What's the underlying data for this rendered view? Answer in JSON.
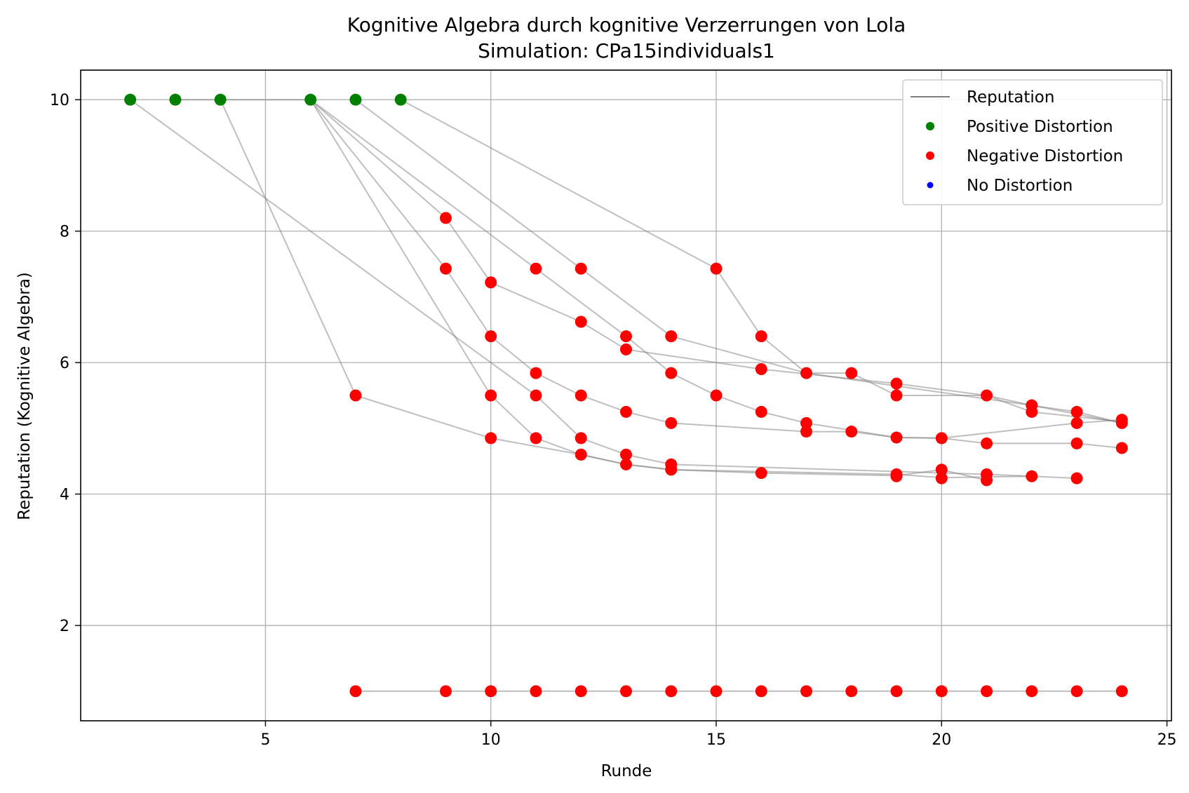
{
  "chart_data": {
    "type": "scatter",
    "title": "Kognitive Algebra durch kognitive Verzerrungen von Lola",
    "subtitle": "Simulation: CPa15individuals1",
    "xlabel": "Runde",
    "ylabel": "Reputation (Kognitive Algebra)",
    "xlim": [
      0.9,
      25.1
    ],
    "ylim": [
      0.55,
      10.45
    ],
    "xticks": [
      5,
      10,
      15,
      20,
      25
    ],
    "yticks": [
      2,
      4,
      6,
      8,
      10
    ],
    "grid": true,
    "legend_position": "top-right",
    "legend": [
      {
        "label": "Reputation",
        "kind": "line",
        "color": "#808080"
      },
      {
        "label": "Positive Distortion",
        "kind": "marker",
        "color": "#008000"
      },
      {
        "label": "Negative Distortion",
        "kind": "marker",
        "color": "#ff0000"
      },
      {
        "label": "No Distortion",
        "kind": "marker",
        "color": "#0000ff"
      }
    ],
    "colors": {
      "line": "#808080",
      "positive": "#008000",
      "negative": "#ff0000",
      "none": "#0000ff",
      "grid": "#b0b0b0"
    },
    "series": [
      {
        "points": [
          [
            2,
            10
          ],
          [
            10,
            6.0
          ],
          [
            11,
            5.5
          ],
          [
            12,
            4.85
          ],
          [
            13,
            4.6
          ],
          [
            14,
            4.45
          ],
          [
            21,
            4.3
          ],
          [
            22,
            4.27
          ]
        ]
      },
      {
        "points": [
          [
            3,
            10
          ],
          [
            6,
            10
          ]
        ]
      },
      {
        "points": [
          [
            4,
            10
          ],
          [
            7,
            5.5
          ],
          [
            10,
            4.85
          ],
          [
            12,
            4.6
          ],
          [
            13,
            4.45
          ],
          [
            14,
            4.37
          ],
          [
            19,
            4.3
          ],
          [
            20,
            4.25
          ],
          [
            22,
            4.27
          ],
          [
            23,
            4.24
          ]
        ]
      },
      {
        "points": [
          [
            6,
            10
          ],
          [
            9,
            8.2
          ],
          [
            10,
            7.22
          ],
          [
            12,
            6.62
          ],
          [
            13,
            6.2
          ],
          [
            16,
            5.9
          ],
          [
            19,
            5.68
          ],
          [
            21,
            5.5
          ],
          [
            22,
            5.35
          ],
          [
            24,
            5.08
          ]
        ]
      },
      {
        "points": [
          [
            6,
            10
          ],
          [
            9,
            7.43
          ],
          [
            10,
            6.4
          ],
          [
            11,
            5.84
          ],
          [
            12,
            5.5
          ],
          [
            13,
            5.25
          ],
          [
            14,
            5.08
          ],
          [
            17,
            4.95
          ],
          [
            18,
            4.95
          ],
          [
            19,
            4.86
          ],
          [
            20,
            4.85
          ],
          [
            21,
            4.77
          ],
          [
            23,
            4.77
          ],
          [
            24,
            4.7
          ]
        ]
      },
      {
        "points": [
          [
            6,
            10
          ],
          [
            10,
            5.5
          ],
          [
            11,
            4.85
          ],
          [
            12,
            4.6
          ],
          [
            13,
            4.45
          ],
          [
            14,
            4.37
          ],
          [
            16,
            4.32
          ],
          [
            19,
            4.28
          ],
          [
            20,
            4.37
          ],
          [
            21,
            4.21
          ]
        ]
      },
      {
        "points": [
          [
            6,
            10
          ],
          [
            11,
            7.43
          ],
          [
            13,
            6.4
          ],
          [
            14,
            5.84
          ],
          [
            15,
            5.5
          ],
          [
            16,
            5.25
          ],
          [
            17,
            5.08
          ],
          [
            19,
            4.86
          ],
          [
            20,
            4.85
          ],
          [
            23,
            5.08
          ],
          [
            24,
            5.13
          ]
        ]
      },
      {
        "points": [
          [
            7,
            10
          ],
          [
            12,
            7.43
          ],
          [
            14,
            6.4
          ],
          [
            17,
            5.84
          ],
          [
            18,
            5.84
          ],
          [
            19,
            5.5
          ],
          [
            21,
            5.5
          ],
          [
            22,
            5.25
          ],
          [
            24,
            5.1
          ]
        ]
      },
      {
        "points": [
          [
            8,
            10
          ],
          [
            15,
            7.43
          ],
          [
            16,
            6.4
          ],
          [
            17,
            5.84
          ],
          [
            23,
            5.25
          ],
          [
            24,
            5.08
          ]
        ]
      },
      {
        "points": [
          [
            7,
            1
          ],
          [
            9,
            1
          ],
          [
            10,
            1
          ],
          [
            11,
            1
          ],
          [
            12,
            1
          ],
          [
            13,
            1
          ],
          [
            14,
            1
          ],
          [
            15,
            1
          ],
          [
            16,
            1
          ],
          [
            17,
            1
          ],
          [
            18,
            1
          ],
          [
            19,
            1
          ],
          [
            20,
            1
          ],
          [
            21,
            1
          ],
          [
            22,
            1
          ],
          [
            23,
            1
          ],
          [
            24,
            1
          ]
        ]
      }
    ],
    "positive_distortion": [
      [
        2,
        10
      ],
      [
        3,
        10
      ],
      [
        4,
        10
      ],
      [
        6,
        10
      ],
      [
        7,
        10
      ],
      [
        8,
        10
      ]
    ],
    "negative_distortion": [
      [
        9,
        8.2
      ],
      [
        9,
        7.43
      ],
      [
        10,
        7.22
      ],
      [
        10,
        6.4
      ],
      [
        10,
        5.5
      ],
      [
        10,
        4.85
      ],
      [
        7,
        5.5
      ],
      [
        11,
        7.43
      ],
      [
        11,
        5.84
      ],
      [
        11,
        5.5
      ],
      [
        11,
        4.85
      ],
      [
        12,
        7.43
      ],
      [
        12,
        6.62
      ],
      [
        12,
        5.5
      ],
      [
        12,
        4.85
      ],
      [
        12,
        4.6
      ],
      [
        13,
        6.4
      ],
      [
        13,
        6.2
      ],
      [
        13,
        5.25
      ],
      [
        13,
        4.6
      ],
      [
        13,
        4.45
      ],
      [
        14,
        6.4
      ],
      [
        14,
        5.84
      ],
      [
        14,
        5.08
      ],
      [
        14,
        4.45
      ],
      [
        14,
        4.37
      ],
      [
        15,
        7.43
      ],
      [
        15,
        5.5
      ],
      [
        16,
        6.4
      ],
      [
        16,
        5.9
      ],
      [
        16,
        5.25
      ],
      [
        16,
        4.32
      ],
      [
        17,
        5.84
      ],
      [
        17,
        5.08
      ],
      [
        17,
        4.95
      ],
      [
        18,
        5.84
      ],
      [
        18,
        4.95
      ],
      [
        19,
        5.68
      ],
      [
        19,
        5.5
      ],
      [
        19,
        4.86
      ],
      [
        19,
        4.3
      ],
      [
        19,
        4.27
      ],
      [
        20,
        4.85
      ],
      [
        20,
        4.37
      ],
      [
        20,
        4.24
      ],
      [
        21,
        5.5
      ],
      [
        21,
        4.77
      ],
      [
        21,
        4.3
      ],
      [
        21,
        4.21
      ],
      [
        22,
        5.35
      ],
      [
        22,
        5.25
      ],
      [
        22,
        4.27
      ],
      [
        23,
        5.25
      ],
      [
        23,
        5.08
      ],
      [
        23,
        4.77
      ],
      [
        23,
        4.24
      ],
      [
        24,
        5.13
      ],
      [
        24,
        5.08
      ],
      [
        24,
        4.7
      ],
      [
        7,
        1
      ],
      [
        9,
        1
      ],
      [
        10,
        1
      ],
      [
        11,
        1
      ],
      [
        12,
        1
      ],
      [
        13,
        1
      ],
      [
        14,
        1
      ],
      [
        15,
        1
      ],
      [
        16,
        1
      ],
      [
        17,
        1
      ],
      [
        18,
        1
      ],
      [
        19,
        1
      ],
      [
        20,
        1
      ],
      [
        21,
        1
      ],
      [
        22,
        1
      ],
      [
        23,
        1
      ],
      [
        24,
        1
      ]
    ],
    "no_distortion": []
  }
}
